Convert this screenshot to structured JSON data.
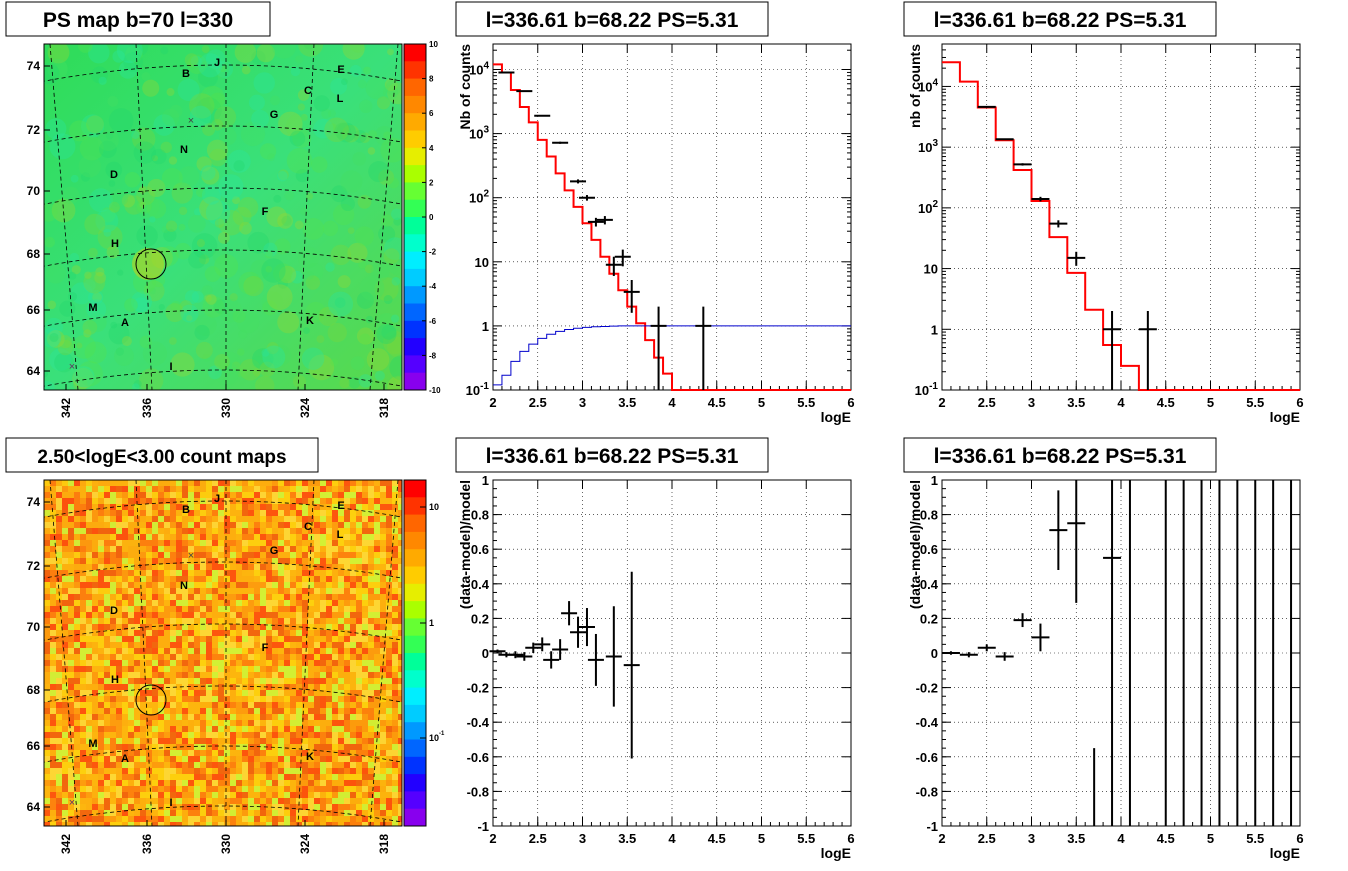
{
  "colors": {
    "data": "#000000",
    "model": "#ff0000",
    "efficiency": "#0000cc",
    "grid": "#000000",
    "map_background_top": "#33dd55",
    "map_background_bottom": "#f0a030"
  },
  "panels": {
    "ps_map": {
      "title": "PS map b=70 l=330",
      "palette_ticks": [
        "10",
        "8",
        "6",
        "4",
        "2",
        "0",
        "-2",
        "-4",
        "-6",
        "-8",
        "-10"
      ],
      "y_ticks": [
        "74",
        "72",
        "70",
        "68",
        "66",
        "64"
      ],
      "x_ticks": [
        "342",
        "336",
        "330",
        "324",
        "318"
      ],
      "sources": [
        "B",
        "J",
        "E",
        "C",
        "L",
        "G",
        "N",
        "D",
        "F",
        "H",
        "M",
        "A",
        "K",
        "I"
      ],
      "marker": "67.6, 336.3",
      "palette_colors": [
        "#ff0000",
        "#ff3300",
        "#ff6600",
        "#ff9900",
        "#ffcc00",
        "#ccff00",
        "#66ff33",
        "#33ff66",
        "#00ffcc",
        "#00ffff",
        "#00ccff",
        "#0099ff",
        "#0066ff",
        "#0033ff",
        "#3300ff",
        "#6600ff",
        "#9900ff",
        "#aa00ff",
        "#aa00ff",
        "#aa00ff"
      ]
    },
    "count_map": {
      "title": "2.50<logE<3.00 count maps",
      "palette_ticks": [
        "10",
        "1",
        "10^-1"
      ],
      "y_ticks": [
        "74",
        "72",
        "70",
        "68",
        "66",
        "64"
      ],
      "x_ticks": [
        "342",
        "336",
        "330",
        "324",
        "318"
      ],
      "sources": [
        "B",
        "J",
        "E",
        "C",
        "L",
        "G",
        "N",
        "D",
        "F",
        "H",
        "M",
        "A",
        "K",
        "I"
      ]
    }
  },
  "chart_data": [
    {
      "type": "line",
      "id": "spectrum_fine",
      "title": "l=336.61 b=68.22 PS=5.31",
      "xlabel": "logE",
      "ylabel": "Nb of counts",
      "xlim": [
        2,
        6
      ],
      "ylim": [
        0.1,
        25000
      ],
      "yscale": "log",
      "x_ticks": [
        "2",
        "2.5",
        "3",
        "3.5",
        "4",
        "4.5",
        "5",
        "5.5",
        "6"
      ],
      "y_ticks": [
        "10^-1",
        "1",
        "10",
        "10^2",
        "10^3",
        "10^4"
      ],
      "grid": true,
      "series": [
        {
          "name": "model",
          "style": "step",
          "bin_width": 0.1,
          "x": [
            2.0,
            2.1,
            2.2,
            2.3,
            2.4,
            2.5,
            2.6,
            2.7,
            2.8,
            2.9,
            3.0,
            3.1,
            3.2,
            3.3,
            3.4,
            3.5,
            3.6,
            3.7,
            3.8,
            3.9,
            4.0,
            4.1
          ],
          "values": [
            12000,
            9000,
            4800,
            2600,
            1500,
            800,
            440,
            240,
            130,
            72,
            40,
            22,
            12,
            6.5,
            3.6,
            2.0,
            1.1,
            0.6,
            0.32,
            0.18,
            0.1,
            0.1
          ]
        },
        {
          "name": "efficiency",
          "style": "step",
          "bin_width": 0.1,
          "x": [
            2.0,
            2.1,
            2.2,
            2.3,
            2.4,
            2.5,
            2.6,
            2.7,
            2.8,
            2.9,
            3.0,
            3.1,
            3.2,
            3.3,
            3.4,
            3.5,
            3.6,
            4.0,
            5.0
          ],
          "values": [
            0.12,
            0.17,
            0.28,
            0.4,
            0.52,
            0.64,
            0.74,
            0.82,
            0.88,
            0.92,
            0.95,
            0.97,
            0.98,
            0.99,
            1.0,
            1.0,
            1.0,
            1.0,
            1.0
          ]
        },
        {
          "name": "data",
          "style": "errorbar",
          "x": [
            2.15,
            2.35,
            2.55,
            2.75,
            2.95,
            3.05,
            3.15,
            3.25,
            3.35,
            3.45,
            3.55,
            3.85,
            4.35
          ],
          "values": [
            9000,
            4600,
            1900,
            720,
            180,
            100,
            42,
            45,
            9,
            12,
            3.4,
            1,
            1
          ],
          "errors": [
            95,
            68,
            44,
            27,
            13,
            10,
            6.5,
            6.7,
            3,
            3.5,
            1.8,
            1,
            1
          ]
        }
      ]
    },
    {
      "type": "line",
      "id": "spectrum_coarse",
      "title": "l=336.61 b=68.22 PS=5.31",
      "xlabel": "logE",
      "ylabel": "nb of counts",
      "xlim": [
        2,
        6
      ],
      "ylim": [
        0.1,
        50000
      ],
      "yscale": "log",
      "x_ticks": [
        "2",
        "2.5",
        "3",
        "3.5",
        "4",
        "4.5",
        "5",
        "5.5",
        "6"
      ],
      "y_ticks": [
        "10^-1",
        "1",
        "10",
        "10^2",
        "10^3",
        "10^4"
      ],
      "grid": true,
      "series": [
        {
          "name": "model",
          "style": "step",
          "bin_width": 0.2,
          "x": [
            2.0,
            2.2,
            2.4,
            2.6,
            2.8,
            3.0,
            3.2,
            3.4,
            3.6,
            3.8,
            4.0,
            4.2
          ],
          "values": [
            25000,
            12000,
            4500,
            1300,
            420,
            130,
            33,
            8.5,
            2.1,
            0.55,
            0.25,
            0.1
          ]
        },
        {
          "name": "data",
          "style": "errorbar",
          "x": [
            2.5,
            2.7,
            2.9,
            3.1,
            3.3,
            3.5,
            3.9,
            4.3
          ],
          "values": [
            4600,
            1350,
            520,
            140,
            55,
            15,
            1,
            1
          ],
          "errors": [
            68,
            37,
            23,
            12,
            7.4,
            3.9,
            1,
            1
          ]
        }
      ]
    },
    {
      "type": "scatter",
      "id": "residual_fine",
      "title": "l=336.61 b=68.22 PS=5.31",
      "xlabel": "logE",
      "ylabel": "(data-model)/model",
      "xlim": [
        2,
        6
      ],
      "ylim": [
        -1,
        1
      ],
      "x_ticks": [
        "2",
        "2.5",
        "3",
        "3.5",
        "4",
        "4.5",
        "5",
        "5.5",
        "6"
      ],
      "y_ticks": [
        "-1",
        "-0.8",
        "-0.6",
        "-0.4",
        "-0.2",
        "0",
        "0.2",
        "0.4",
        "0.6",
        "0.8",
        "1"
      ],
      "grid": true,
      "series": [
        {
          "name": "data",
          "style": "errorbar",
          "x": [
            2.05,
            2.15,
            2.25,
            2.35,
            2.45,
            2.55,
            2.65,
            2.75,
            2.85,
            2.95,
            3.05,
            3.15,
            3.35,
            3.55
          ],
          "values": [
            0.01,
            -0.01,
            -0.01,
            -0.02,
            0.03,
            0.05,
            -0.04,
            0.02,
            0.23,
            0.12,
            0.15,
            -0.04,
            -0.02,
            -0.07
          ],
          "errors": [
            0.01,
            0.015,
            0.02,
            0.025,
            0.03,
            0.04,
            0.05,
            0.06,
            0.07,
            0.09,
            0.11,
            0.15,
            0.29,
            0.54
          ]
        }
      ]
    },
    {
      "type": "scatter",
      "id": "residual_coarse",
      "title": "l=336.61 b=68.22 PS=5.31",
      "xlabel": "logE",
      "ylabel": "(data-model)/model",
      "xlim": [
        2,
        6
      ],
      "ylim": [
        -1,
        1
      ],
      "x_ticks": [
        "2",
        "2.5",
        "3",
        "3.5",
        "4",
        "4.5",
        "5",
        "5.5",
        "6"
      ],
      "y_ticks": [
        "-1",
        "-0.8",
        "-0.6",
        "-0.4",
        "-0.2",
        "0",
        "0.2",
        "0.4",
        "0.6",
        "0.8",
        "1"
      ],
      "grid": true,
      "series": [
        {
          "name": "data",
          "style": "errorbar",
          "x": [
            2.1,
            2.3,
            2.5,
            2.7,
            2.9,
            3.1,
            3.3,
            3.5,
            3.9
          ],
          "values": [
            0.0,
            -0.01,
            0.03,
            -0.02,
            0.19,
            0.09,
            0.71,
            0.75,
            0.55
          ],
          "errors": [
            0.01,
            0.015,
            0.02,
            0.025,
            0.04,
            0.08,
            0.23,
            0.46,
            1.8
          ]
        },
        {
          "name": "empty_bins",
          "style": "vertical_error",
          "x": [
            3.7,
            4.1,
            4.5,
            4.7,
            4.9,
            5.1,
            5.3,
            5.5,
            5.7,
            5.9
          ],
          "low": [
            -1,
            -1,
            -1,
            -1,
            -1,
            -1,
            -1,
            -1,
            -1,
            -1
          ],
          "high": [
            -0.55,
            1,
            1,
            1,
            1,
            1,
            1,
            1,
            1,
            1
          ]
        }
      ]
    }
  ]
}
